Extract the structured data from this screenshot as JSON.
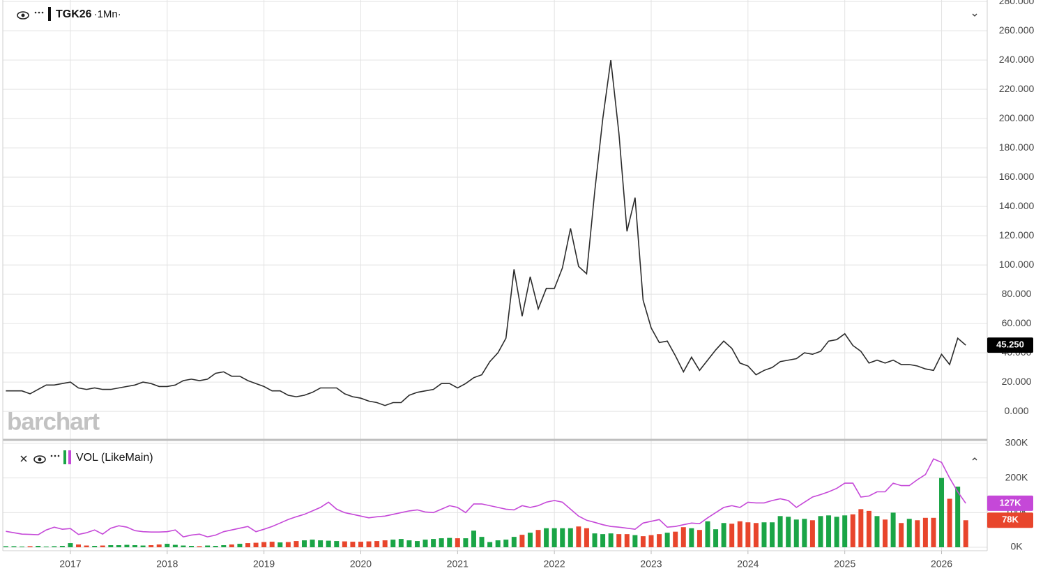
{
  "chart_data": [
    {
      "type": "line",
      "title": "TGK26",
      "interval": "·1Mn·",
      "watermark": "barchart",
      "color": "#2b2b2b",
      "values": [
        14,
        14,
        14,
        12,
        15,
        18,
        18,
        19,
        20,
        16,
        15,
        16,
        15,
        15,
        16,
        17,
        18,
        20,
        19,
        17,
        17,
        18,
        21,
        22,
        21,
        22,
        26,
        27,
        24,
        24,
        21,
        19,
        17,
        14,
        14,
        11,
        10,
        11,
        13,
        16,
        16,
        16,
        12,
        10,
        9,
        7,
        6,
        4,
        6,
        6,
        11,
        13,
        14,
        15,
        19,
        19,
        16,
        19,
        23,
        25,
        34,
        40,
        50,
        97,
        65,
        92,
        70,
        84,
        84,
        98,
        125,
        99,
        94,
        150,
        200,
        240,
        190,
        123,
        146,
        76,
        57,
        47,
        48,
        38,
        27,
        37,
        28,
        35,
        42,
        48,
        43,
        33,
        31,
        25,
        28,
        30,
        34,
        35,
        36,
        40,
        39,
        41,
        48,
        49,
        53,
        45,
        41,
        33,
        35,
        33,
        35,
        32,
        32,
        31,
        29,
        28,
        39,
        32,
        50,
        45.25
      ],
      "last_label": "45.250",
      "ylim": [
        -19,
        281
      ],
      "yticks": [
        {
          "value": 0,
          "label": "0.000"
        },
        {
          "value": 20,
          "label": "20.000"
        },
        {
          "value": 40,
          "label": "40.000"
        },
        {
          "value": 60,
          "label": "60.000"
        },
        {
          "value": 80,
          "label": "80.000"
        },
        {
          "value": 100,
          "label": "100.000"
        },
        {
          "value": 120,
          "label": "120.000"
        },
        {
          "value": 140,
          "label": "140.000"
        },
        {
          "value": 160,
          "label": "160.000"
        },
        {
          "value": 180,
          "label": "180.000"
        },
        {
          "value": 200,
          "label": "200.000"
        },
        {
          "value": 220,
          "label": "220.000"
        },
        {
          "value": 240,
          "label": "240.000"
        },
        {
          "value": 260,
          "label": "260.000"
        },
        {
          "value": 280,
          "label": "280.000"
        }
      ],
      "grid": true
    },
    {
      "type": "bar",
      "title": "VOL (LikeMain)",
      "categories": [
        null,
        null,
        null,
        null,
        null,
        null,
        null,
        null,
        "2017",
        null,
        null,
        null,
        null,
        null,
        null,
        null,
        null,
        null,
        null,
        null,
        "2018",
        null,
        null,
        null,
        null,
        null,
        null,
        null,
        null,
        null,
        null,
        null,
        "2019",
        null,
        null,
        null,
        null,
        null,
        null,
        null,
        null,
        null,
        null,
        null,
        "2020",
        null,
        null,
        null,
        null,
        null,
        null,
        null,
        null,
        null,
        null,
        null,
        "2021",
        null,
        null,
        null,
        null,
        null,
        null,
        null,
        null,
        null,
        null,
        null,
        "2022",
        null,
        null,
        null,
        null,
        null,
        null,
        null,
        null,
        null,
        null,
        null,
        "2023",
        null,
        null,
        null,
        null,
        null,
        null,
        null,
        null,
        null,
        null,
        null,
        "2024",
        null,
        null,
        null,
        null,
        null,
        null,
        null,
        null,
        null,
        null,
        null,
        "2025",
        null,
        null,
        null,
        null,
        null,
        null,
        null,
        null,
        null,
        null,
        null,
        "2026",
        null,
        null,
        null
      ],
      "series": [
        {
          "type": "bar",
          "up_color": "#1aa546",
          "down_color": "#e8452c",
          "last_label": "78K",
          "values": [
            3000,
            3000,
            2000,
            3000,
            4000,
            2000,
            3000,
            4000,
            12000,
            8000,
            5000,
            4000,
            5000,
            6000,
            6000,
            7000,
            6000,
            5000,
            6000,
            8000,
            10000,
            7000,
            5000,
            4000,
            3000,
            5000,
            4000,
            6000,
            8000,
            10000,
            12000,
            13000,
            15000,
            16000,
            14000,
            15000,
            18000,
            20000,
            22000,
            20000,
            19000,
            18000,
            17000,
            16000,
            16000,
            17000,
            18000,
            20000,
            22000,
            24000,
            20000,
            18000,
            22000,
            24000,
            26000,
            27000,
            26000,
            26000,
            48000,
            30000,
            15000,
            20000,
            22000,
            30000,
            36000,
            42000,
            50000,
            55000,
            55000,
            55000,
            55000,
            60000,
            55000,
            40000,
            38000,
            40000,
            38000,
            38000,
            35000,
            32000,
            35000,
            38000,
            42000,
            45000,
            58000,
            55000,
            50000,
            75000,
            52000,
            70000,
            68000,
            75000,
            72000,
            70000,
            72000,
            72000,
            90000,
            88000,
            80000,
            82000,
            78000,
            90000,
            92000,
            88000,
            92000,
            95000,
            110000,
            105000,
            90000,
            80000,
            100000,
            70000,
            82000,
            78000,
            85000,
            85000,
            200000,
            140000,
            175000,
            78000
          ]
        },
        {
          "type": "line",
          "color": "#c548d8",
          "last_label": "127K",
          "values": [
            46000,
            42000,
            38000,
            37000,
            36000,
            50000,
            58000,
            52000,
            54000,
            37000,
            42000,
            50000,
            38000,
            55000,
            62000,
            58000,
            48000,
            45000,
            44000,
            44000,
            45000,
            50000,
            30000,
            35000,
            38000,
            30000,
            35000,
            45000,
            50000,
            55000,
            60000,
            45000,
            52000,
            60000,
            70000,
            80000,
            88000,
            95000,
            105000,
            115000,
            130000,
            110000,
            100000,
            95000,
            90000,
            85000,
            88000,
            90000,
            95000,
            100000,
            105000,
            108000,
            102000,
            100000,
            110000,
            120000,
            115000,
            100000,
            125000,
            125000,
            120000,
            115000,
            110000,
            108000,
            120000,
            115000,
            120000,
            130000,
            135000,
            130000,
            110000,
            90000,
            78000,
            72000,
            65000,
            60000,
            58000,
            55000,
            52000,
            70000,
            75000,
            80000,
            58000,
            60000,
            65000,
            70000,
            68000,
            85000,
            100000,
            115000,
            120000,
            115000,
            130000,
            128000,
            128000,
            135000,
            140000,
            135000,
            115000,
            130000,
            145000,
            152000,
            160000,
            170000,
            185000,
            185000,
            145000,
            148000,
            160000,
            160000,
            185000,
            178000,
            178000,
            195000,
            210000,
            255000,
            245000,
            200000,
            160000,
            127000
          ]
        }
      ],
      "ylim": [
        -10000,
        308000
      ],
      "yticks": [
        {
          "value": 0,
          "label": "0K"
        },
        {
          "value": 100000,
          "label": "100K"
        },
        {
          "value": 200000,
          "label": "200K"
        },
        {
          "value": 300000,
          "label": "300K"
        }
      ],
      "grid": true
    }
  ]
}
